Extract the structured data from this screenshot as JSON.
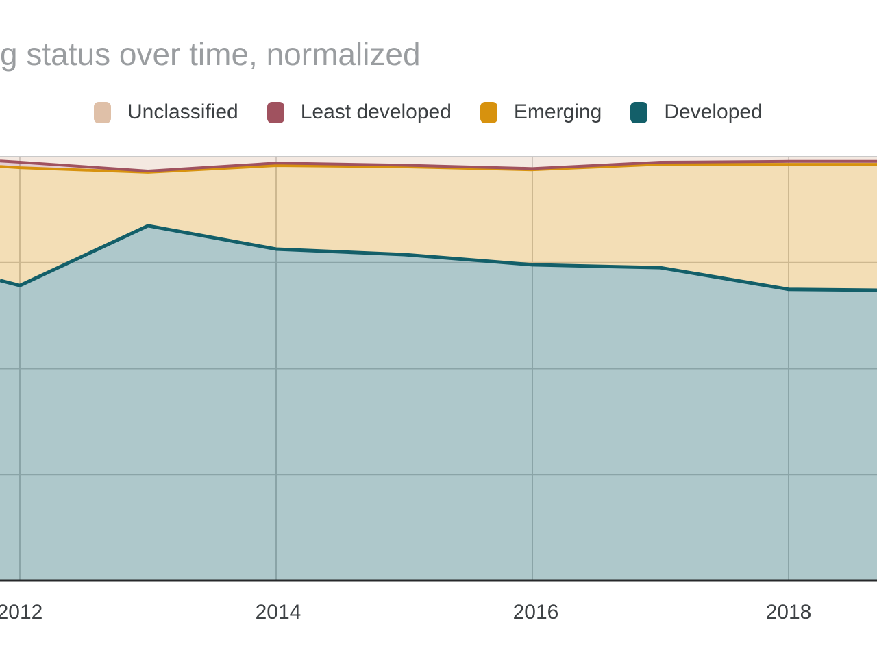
{
  "header": {
    "title": "g status over time, normalized"
  },
  "legend": {
    "items": [
      {
        "label": "Unclassified",
        "color": "#dfc0a8"
      },
      {
        "label": "Least developed",
        "color": "#a0525f"
      },
      {
        "label": "Emerging",
        "color": "#d7920e"
      },
      {
        "label": "Developed",
        "color": "#135f69"
      }
    ]
  },
  "chart_data": {
    "type": "area",
    "stacked": true,
    "normalized": true,
    "title": "g status over time, normalized",
    "xlabel": "",
    "ylabel": "",
    "legend_position": "top",
    "grid": true,
    "x_axis": {
      "ticks": [
        2012,
        2014,
        2016,
        2018
      ],
      "tick_labels": [
        "2012",
        "2014",
        "2016",
        "2018"
      ],
      "visible_year_range": [
        2011.845,
        2018.69
      ]
    },
    "y_axis": {
      "range": [
        0,
        100
      ],
      "unit": "percent",
      "gridlines_pct": [
        25,
        50,
        75,
        100
      ],
      "labels_visible": false
    },
    "years": [
      2012,
      2013,
      2014,
      2015,
      2016,
      2017,
      2018
    ],
    "series": [
      {
        "name": "Developed",
        "share_pct": [
          69.6,
          83.7,
          78.2,
          76.9,
          74.5,
          73.8,
          68.7
        ]
      },
      {
        "name": "Emerging",
        "share_pct": [
          27.8,
          12.6,
          19.7,
          20.7,
          22.4,
          24.4,
          29.5
        ]
      },
      {
        "name": "Least developed",
        "share_pct": [
          1.3,
          0.3,
          0.6,
          0.4,
          0.3,
          0.5,
          0.7
        ]
      },
      {
        "name": "Unclassified",
        "share_pct": [
          1.3,
          3.4,
          1.5,
          2.0,
          2.8,
          1.3,
          1.1
        ]
      }
    ],
    "render": {
      "x_years": [
        2011.845,
        2012,
        2013,
        2014,
        2015,
        2016,
        2017,
        2018,
        2018.69
      ],
      "cumulative_top_pct": {
        "developed": [
          70.8,
          69.6,
          83.7,
          78.2,
          76.9,
          74.5,
          73.8,
          68.7,
          68.5
        ],
        "emerging": [
          97.7,
          97.4,
          96.3,
          97.9,
          97.6,
          96.9,
          98.2,
          98.2,
          98.2
        ],
        "least_developed": [
          99.0,
          98.7,
          96.6,
          98.5,
          98.0,
          97.2,
          98.7,
          98.9,
          98.9
        ],
        "unclassified": [
          100,
          100,
          100,
          100,
          100,
          100,
          100,
          100,
          100
        ]
      }
    },
    "colors": {
      "developed_line": "#135f69",
      "developed_fill": "rgba(18,95,104,0.34)",
      "emerging_line": "#d7920e",
      "emerging_fill": "rgba(215,146,14,0.30)",
      "least_developed_line": "#a0525f",
      "least_developed_fill": "rgba(160,82,95,0.28)",
      "unclassified_fill": "rgba(223,192,168,0.35)",
      "gridline": "#c9c9c9",
      "axis_line": "#26282a"
    }
  }
}
